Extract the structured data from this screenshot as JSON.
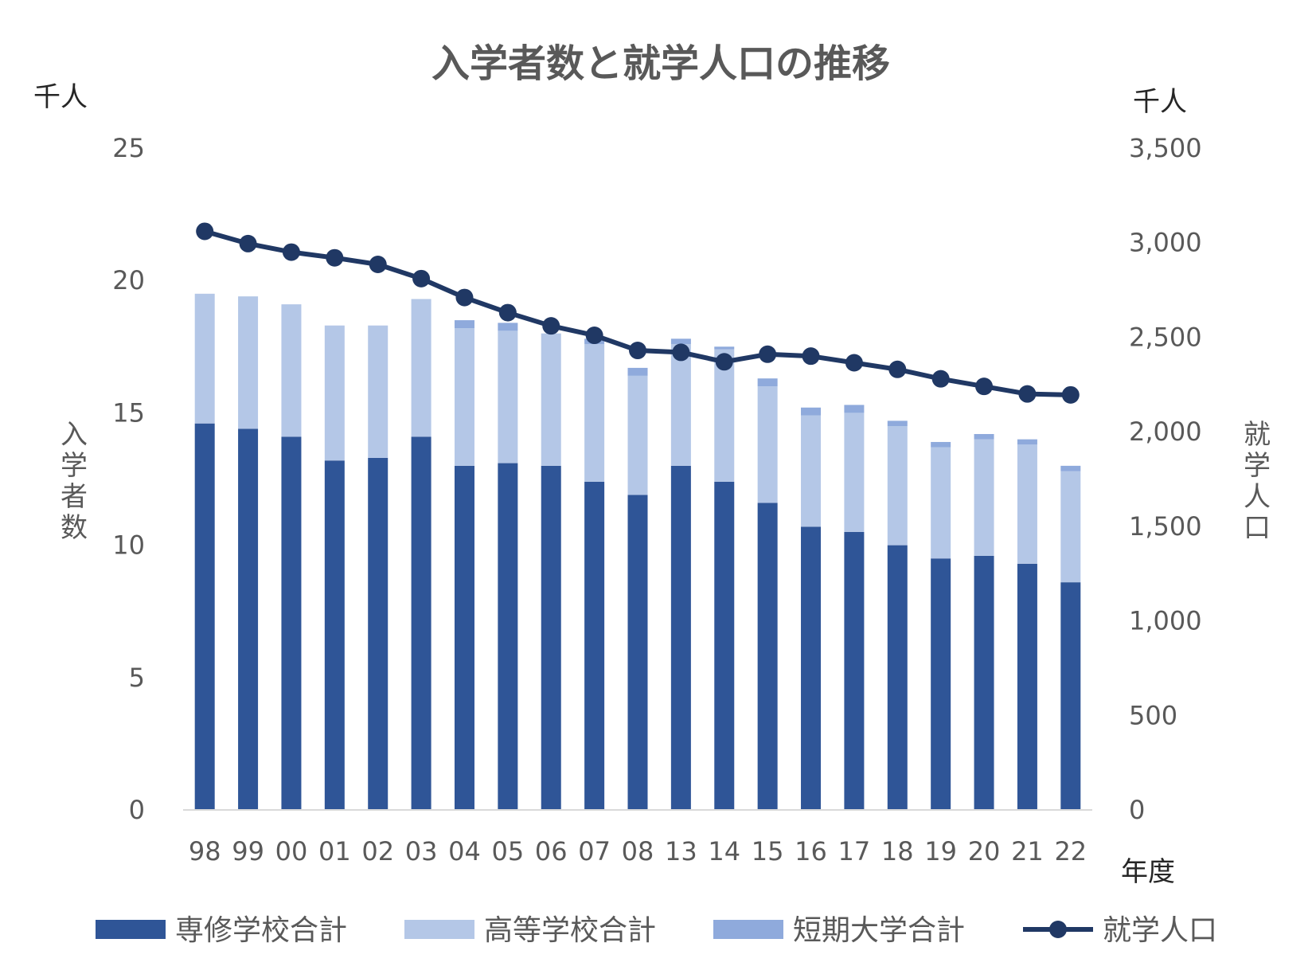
{
  "chart_data": {
    "type": "bar",
    "stacked": true,
    "title": "入学者数と就学人口の推移",
    "left_unit": "千人",
    "right_unit": "千人",
    "ylabel": "入学者数",
    "y2label": "就学人口",
    "xlabel": "年度",
    "ylim": [
      0,
      25
    ],
    "y_ticks": [
      "0",
      "5",
      "10",
      "15",
      "20",
      "25"
    ],
    "y2lim": [
      0,
      3500
    ],
    "y2_ticks": [
      "0",
      "500",
      "1,000",
      "1,500",
      "2,000",
      "2,500",
      "3,000",
      "3,500"
    ],
    "categories": [
      "98",
      "99",
      "00",
      "01",
      "02",
      "03",
      "04",
      "05",
      "06",
      "07",
      "08",
      "13",
      "14",
      "15",
      "16",
      "17",
      "18",
      "19",
      "20",
      "21",
      "22"
    ],
    "series": [
      {
        "name": "専修学校合計",
        "kind": "bar",
        "color": "#2F5597",
        "values": [
          14.6,
          14.4,
          14.1,
          13.2,
          13.3,
          14.1,
          13.0,
          13.1,
          13.0,
          12.4,
          11.9,
          13.0,
          12.4,
          11.6,
          10.7,
          10.5,
          10.0,
          9.5,
          9.6,
          9.3,
          8.6
        ]
      },
      {
        "name": "高等学校合計",
        "kind": "bar",
        "color": "#B4C7E7",
        "values": [
          4.9,
          5.0,
          5.0,
          5.1,
          5.0,
          5.2,
          5.2,
          5.0,
          5.0,
          5.2,
          4.5,
          4.6,
          5.0,
          4.4,
          4.2,
          4.5,
          4.5,
          4.2,
          4.4,
          4.5,
          4.2
        ]
      },
      {
        "name": "短期大学合計",
        "kind": "bar",
        "color": "#8FAADC",
        "values": [
          0,
          0,
          0,
          0,
          0,
          0,
          0.3,
          0.3,
          0,
          0.2,
          0.3,
          0.2,
          0.1,
          0.3,
          0.3,
          0.3,
          0.2,
          0.2,
          0.2,
          0.2,
          0.2
        ]
      },
      {
        "name": "就学人口",
        "kind": "line",
        "axis": "right",
        "color": "#203864",
        "values": [
          3060,
          2995,
          2950,
          2920,
          2885,
          2810,
          2710,
          2630,
          2560,
          2510,
          2430,
          2420,
          2370,
          2410,
          2400,
          2365,
          2330,
          2280,
          2240,
          2200,
          2195
        ]
      }
    ],
    "legend_position": "bottom"
  }
}
